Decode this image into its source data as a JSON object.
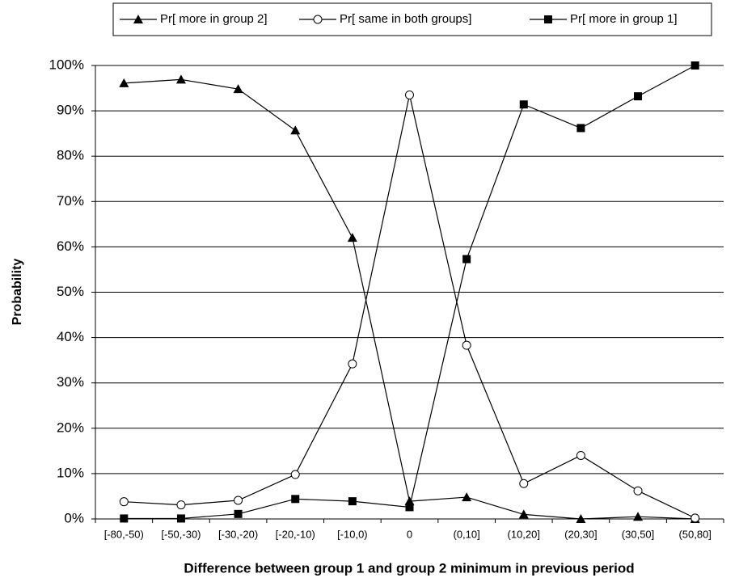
{
  "chart_data": {
    "type": "line",
    "x_label": "Difference between group 1 and group 2 minimum in previous period",
    "y_label": "Probability",
    "categories": [
      "[-80,-50)",
      "[-50,-30)",
      "[-30,-20)",
      "[-20,-10)",
      "[-10,0)",
      "0",
      "(0,10]",
      "(10,20]",
      "(20,30]",
      "(30,50]",
      "(50,80]"
    ],
    "series": [
      {
        "name": "Pr[ more in group 2]",
        "color": "#000000",
        "marker": "triangle",
        "values": [
          96.1,
          96.9,
          94.8,
          85.7,
          62.0,
          3.9,
          4.8,
          1.0,
          0,
          0.5,
          0
        ]
      },
      {
        "name": "Pr[ same in both groups]",
        "color": "#000000",
        "marker": "circle",
        "values": [
          3.8,
          3.1,
          4.1,
          9.8,
          34.2,
          93.5,
          38.3,
          7.8,
          14.0,
          6.2,
          0.2
        ]
      },
      {
        "name": "Pr[ more in group 1]",
        "color": "#000000",
        "marker": "square",
        "values": [
          0.1,
          0.1,
          1.1,
          4.4,
          3.9,
          2.6,
          57.3,
          91.4,
          86.2,
          93.2,
          100
        ]
      }
    ],
    "ylim": [
      0,
      100
    ],
    "yticks": [
      {
        "value": 0,
        "label": "0%"
      },
      {
        "value": 10,
        "label": "10%"
      },
      {
        "value": 20,
        "label": "20%"
      },
      {
        "value": 30,
        "label": "30%"
      },
      {
        "value": 40,
        "label": "40%"
      },
      {
        "value": 50,
        "label": "50%"
      },
      {
        "value": 60,
        "label": "60%"
      },
      {
        "value": 70,
        "label": "70%"
      },
      {
        "value": 80,
        "label": "80%"
      },
      {
        "value": 90,
        "label": "90%"
      },
      {
        "value": 100,
        "label": "100%"
      }
    ],
    "grid": true,
    "legend": "top"
  }
}
